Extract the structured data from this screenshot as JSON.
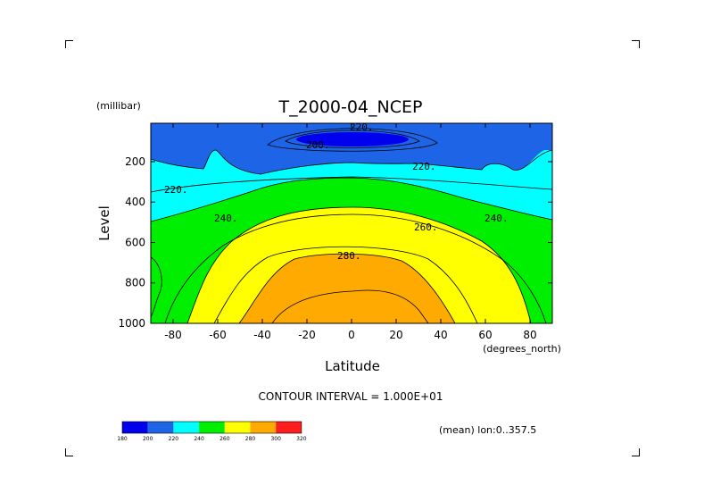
{
  "chart_data": {
    "type": "contour",
    "title": "T_2000-04_NCEP",
    "xlabel": "Latitude",
    "x_units": "(degrees_north)",
    "ylabel": "Level",
    "y_units": "(millibar)",
    "x_ticks": [
      -80,
      -60,
      -40,
      -20,
      0,
      20,
      40,
      60,
      80
    ],
    "y_ticks": [
      200,
      400,
      600,
      800,
      1000
    ],
    "xlim": [
      -90,
      90
    ],
    "ylim": [
      1000,
      10
    ],
    "y_inverted": true,
    "contour_levels": [
      200,
      220,
      240,
      260,
      280
    ],
    "contour_labels": [
      "220.",
      "200.",
      "220.",
      "220.",
      "240.",
      "240.",
      "260.",
      "280."
    ],
    "contour_interval_text": "CONTOUR INTERVAL = 1.000E+01",
    "info_text": "(mean) lon:0..357.5",
    "colorbar": {
      "labels": [
        "180",
        "200",
        "220",
        "240",
        "260",
        "280",
        "300",
        "320"
      ],
      "colors": [
        "#0000ee",
        "#1e64e6",
        "#00ffff",
        "#00ee00",
        "#ffff00",
        "#ffaa00",
        "#ff1e1e"
      ]
    }
  }
}
